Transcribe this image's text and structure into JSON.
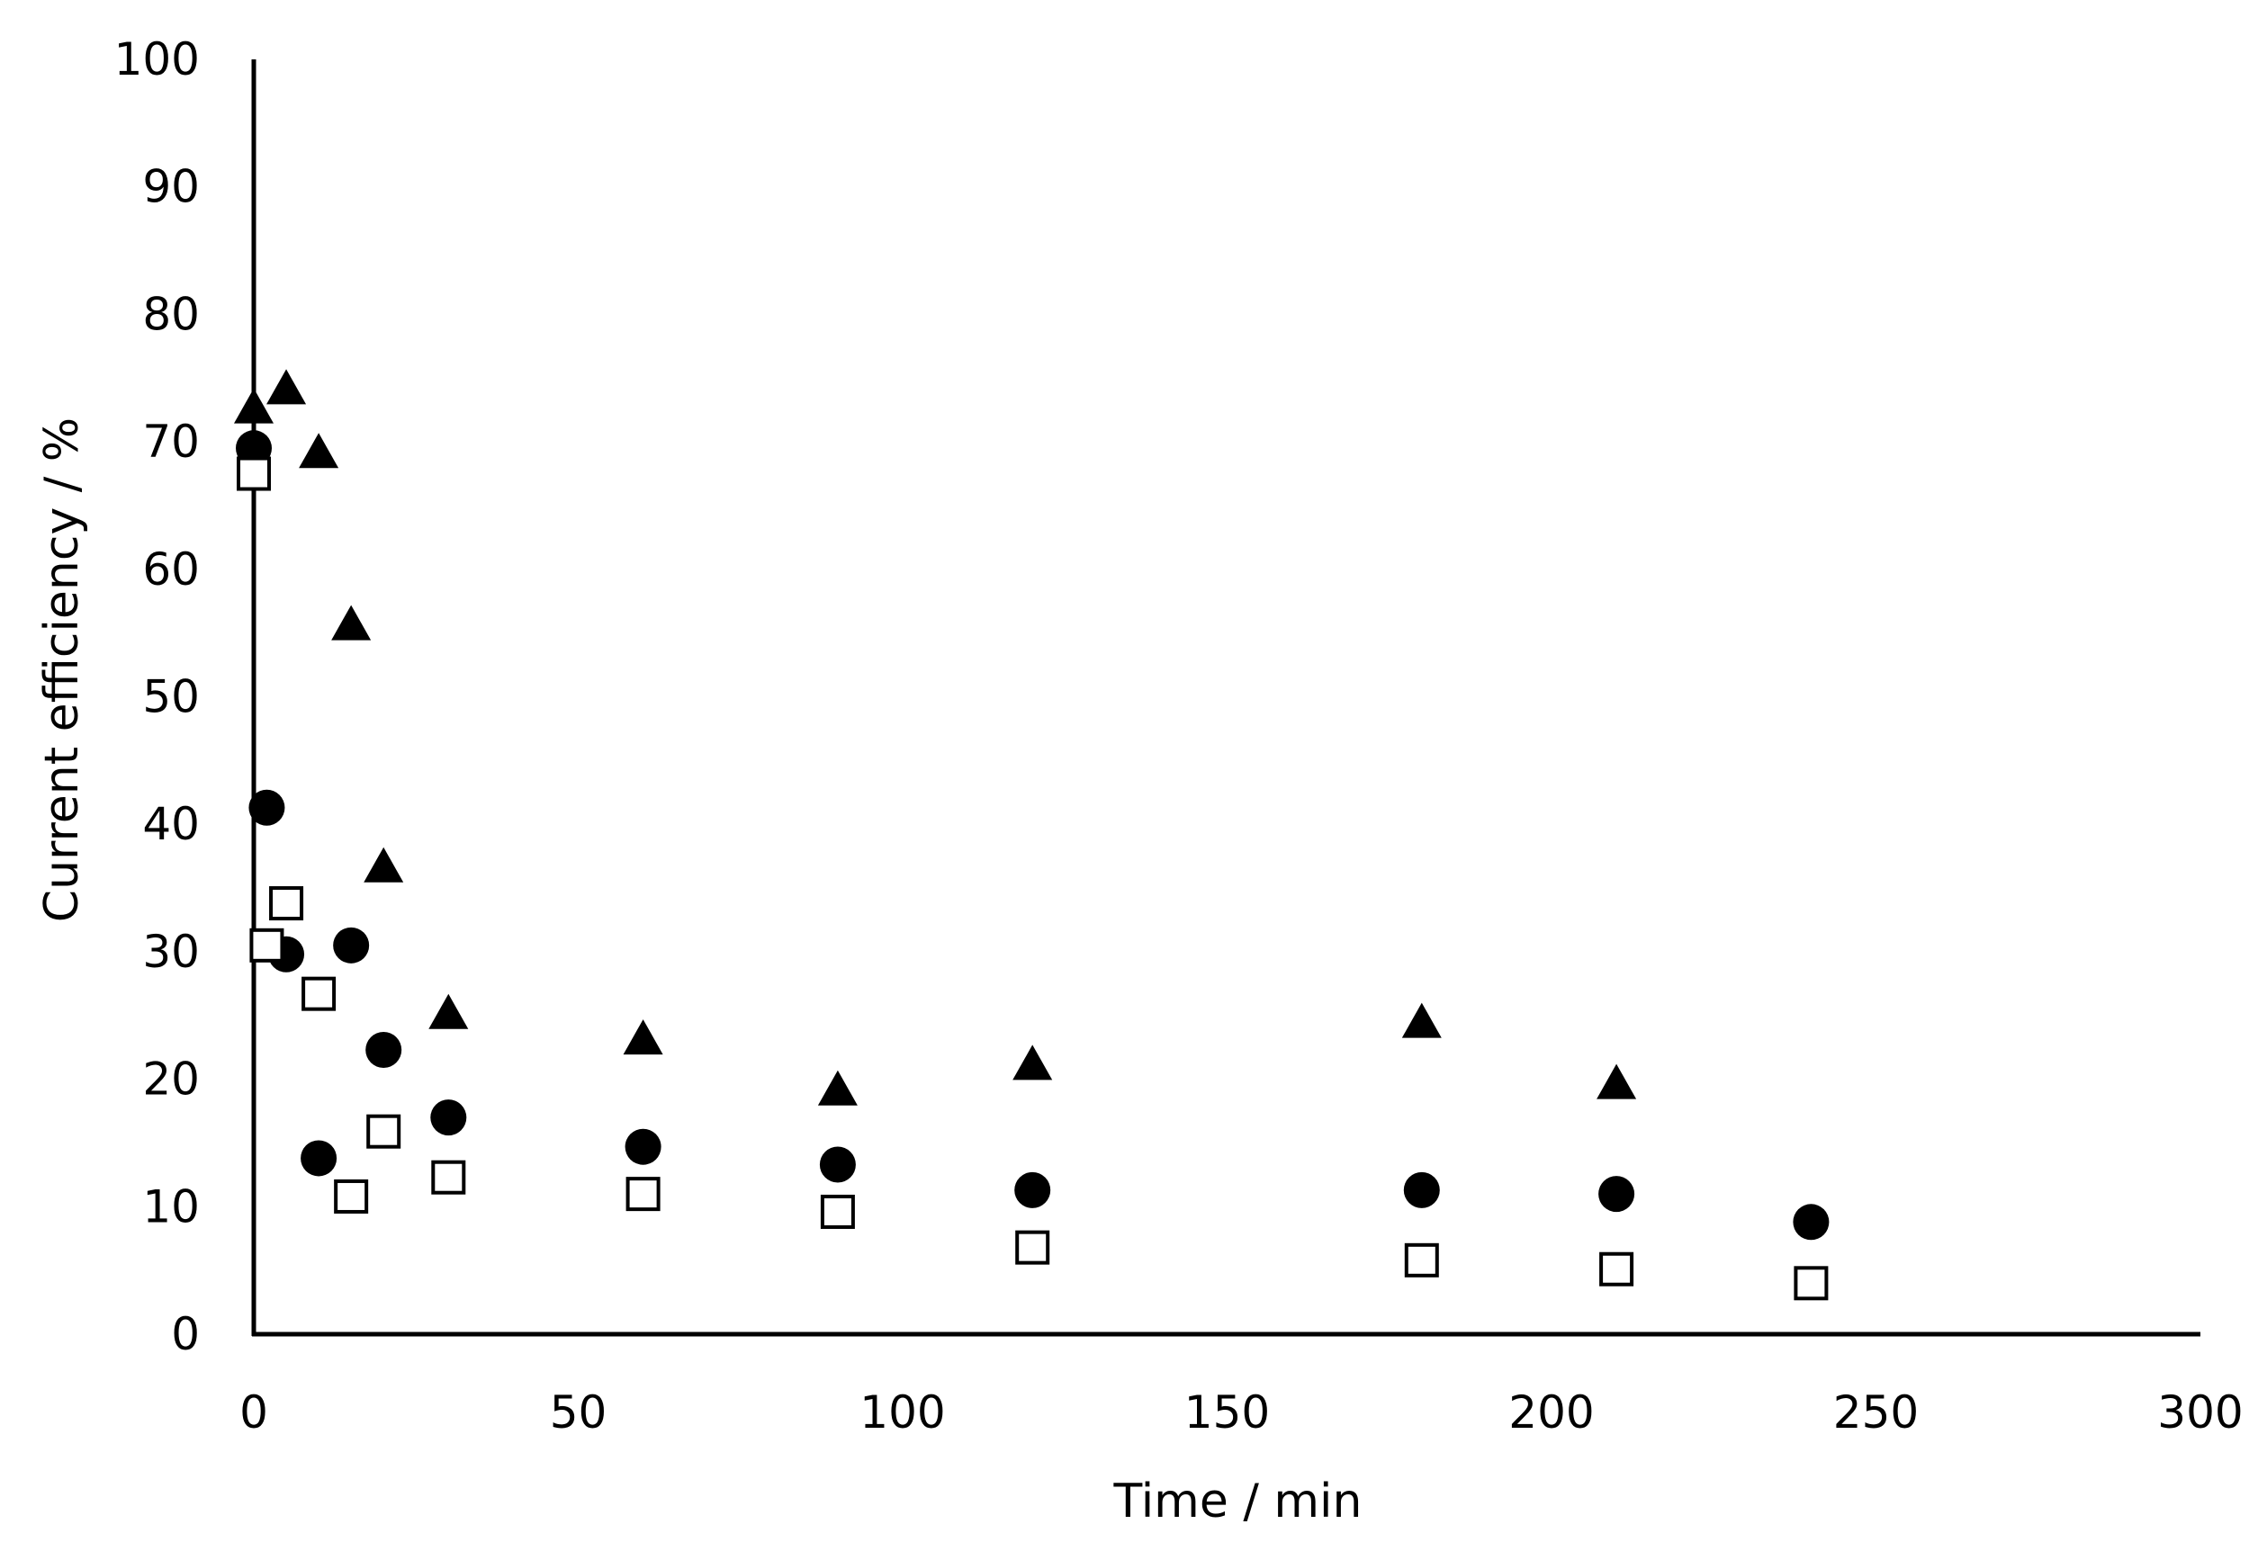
{
  "chart_data": {
    "type": "scatter",
    "title": "",
    "xlabel": "Time / min",
    "ylabel": "Current efficiency / %",
    "xlim": [
      0,
      300
    ],
    "ylim": [
      0,
      100
    ],
    "x_ticks": [
      0,
      50,
      100,
      150,
      200,
      250,
      300
    ],
    "y_ticks": [
      0,
      10,
      20,
      30,
      40,
      50,
      60,
      70,
      80,
      90,
      100
    ],
    "x_tick_labels": [
      "0",
      "50",
      "100",
      "150",
      "200",
      "250",
      "300"
    ],
    "y_tick_labels": [
      "0",
      "10",
      "20",
      "30",
      "40",
      "50",
      "60",
      "70",
      "80",
      "90",
      "100"
    ],
    "grid": false,
    "legend": "none",
    "series": [
      {
        "name": "filled-triangle",
        "marker": "triangle",
        "filled": true,
        "color": "#000000",
        "points": [
          {
            "x": 0,
            "y": 72.5
          },
          {
            "x": 5,
            "y": 74.0
          },
          {
            "x": 10,
            "y": 69.0
          },
          {
            "x": 15,
            "y": 55.5
          },
          {
            "x": 20,
            "y": 36.5
          },
          {
            "x": 30,
            "y": 25.0
          },
          {
            "x": 60,
            "y": 23.0
          },
          {
            "x": 90,
            "y": 19.0
          },
          {
            "x": 120,
            "y": 21.0
          },
          {
            "x": 180,
            "y": 24.3
          },
          {
            "x": 210,
            "y": 19.5
          }
        ]
      },
      {
        "name": "filled-circle",
        "marker": "circle",
        "filled": true,
        "color": "#000000",
        "points": [
          {
            "x": 0,
            "y": 69.5
          },
          {
            "x": 2,
            "y": 41.3
          },
          {
            "x": 5,
            "y": 29.8
          },
          {
            "x": 10,
            "y": 13.8
          },
          {
            "x": 15,
            "y": 30.5
          },
          {
            "x": 20,
            "y": 22.3
          },
          {
            "x": 30,
            "y": 17.0
          },
          {
            "x": 60,
            "y": 14.7
          },
          {
            "x": 90,
            "y": 13.3
          },
          {
            "x": 120,
            "y": 11.3
          },
          {
            "x": 180,
            "y": 11.3
          },
          {
            "x": 210,
            "y": 11.0
          },
          {
            "x": 240,
            "y": 8.8
          }
        ]
      },
      {
        "name": "open-square",
        "marker": "square",
        "filled": false,
        "color": "#000000",
        "points": [
          {
            "x": 0,
            "y": 67.5
          },
          {
            "x": 2,
            "y": 30.5
          },
          {
            "x": 5,
            "y": 33.8
          },
          {
            "x": 10,
            "y": 26.7
          },
          {
            "x": 15,
            "y": 10.8
          },
          {
            "x": 20,
            "y": 15.9
          },
          {
            "x": 30,
            "y": 12.3
          },
          {
            "x": 60,
            "y": 11.0
          },
          {
            "x": 90,
            "y": 9.6
          },
          {
            "x": 120,
            "y": 6.8
          },
          {
            "x": 180,
            "y": 5.8
          },
          {
            "x": 210,
            "y": 5.1
          },
          {
            "x": 240,
            "y": 4.0
          }
        ]
      }
    ]
  }
}
